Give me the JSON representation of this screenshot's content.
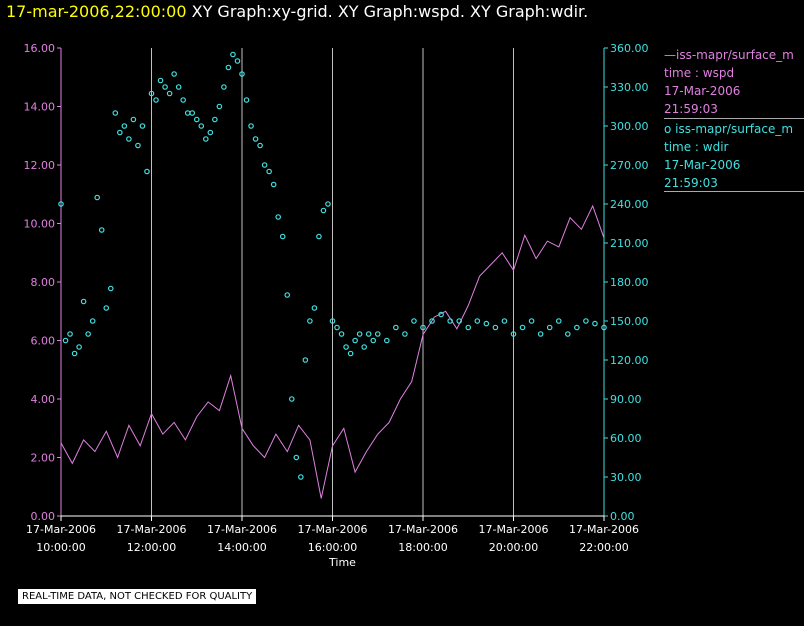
{
  "title": {
    "timestamp": "17-mar-2006,22:00:00",
    "graphs": "XY Graph:xy-grid.  XY Graph:wspd.  XY Graph:wdir."
  },
  "legend": {
    "wspd": {
      "marker": "—",
      "series": "iss-mapr/surface_m",
      "axis": "time : wspd",
      "date": "17-Mar-2006",
      "time": "21:59:03"
    },
    "wdir": {
      "marker": "o",
      "series": "iss-mapr/surface_m",
      "axis": "time : wdir",
      "date": "17-Mar-2006",
      "time": "21:59:03"
    }
  },
  "warning": "REAL-TIME DATA, NOT CHECKED FOR QUALITY",
  "colors": {
    "wspd": "#e080e0",
    "wdir": "#40e0e0",
    "grid": "#c0c0c0",
    "title_time": "#ffff00"
  },
  "chart_data": {
    "type": "line",
    "xlabel": "Time",
    "x_range_hours": [
      10.0,
      22.0
    ],
    "xticks": [
      {
        "date": "17-Mar-2006",
        "time": "10:00:00"
      },
      {
        "date": "17-Mar-2006",
        "time": "12:00:00"
      },
      {
        "date": "17-Mar-2006",
        "time": "14:00:00"
      },
      {
        "date": "17-Mar-2006",
        "time": "16:00:00"
      },
      {
        "date": "17-Mar-2006",
        "time": "18:00:00"
      },
      {
        "date": "17-Mar-2006",
        "time": "20:00:00"
      },
      {
        "date": "17-Mar-2006",
        "time": "22:00:00"
      }
    ],
    "y_left": {
      "label": "wspd",
      "ylim": [
        0,
        16
      ],
      "ticks": [
        "0.00",
        "2.00",
        "4.00",
        "6.00",
        "8.00",
        "10.00",
        "12.00",
        "14.00",
        "16.00"
      ]
    },
    "y_right": {
      "label": "wdir",
      "ylim": [
        0,
        360
      ],
      "ticks": [
        "0.00",
        "30.00",
        "60.00",
        "90.00",
        "120.00",
        "150.00",
        "180.00",
        "210.00",
        "240.00",
        "270.00",
        "300.00",
        "330.00",
        "360.00"
      ]
    },
    "series": [
      {
        "name": "wspd",
        "style": "line",
        "axis": "left",
        "x": [
          10.0,
          10.25,
          10.5,
          10.75,
          11.0,
          11.25,
          11.5,
          11.75,
          12.0,
          12.25,
          12.5,
          12.75,
          13.0,
          13.25,
          13.5,
          13.75,
          14.0,
          14.25,
          14.5,
          14.75,
          15.0,
          15.25,
          15.5,
          15.75,
          16.0,
          16.25,
          16.5,
          16.75,
          17.0,
          17.25,
          17.5,
          17.75,
          18.0,
          18.25,
          18.5,
          18.75,
          19.0,
          19.25,
          19.5,
          19.75,
          20.0,
          20.25,
          20.5,
          20.75,
          21.0,
          21.25,
          21.5,
          21.75,
          22.0
        ],
        "values": [
          2.5,
          1.8,
          2.6,
          2.2,
          2.9,
          2.0,
          3.1,
          2.4,
          3.5,
          2.8,
          3.2,
          2.6,
          3.4,
          3.9,
          3.6,
          4.8,
          3.0,
          2.4,
          2.0,
          2.8,
          2.2,
          3.1,
          2.6,
          0.6,
          2.4,
          3.0,
          1.5,
          2.2,
          2.8,
          3.2,
          4.0,
          4.6,
          6.2,
          6.8,
          7.0,
          6.4,
          7.2,
          8.2,
          8.6,
          9.0,
          8.4,
          9.6,
          8.8,
          9.4,
          9.2,
          10.2,
          9.8,
          10.6,
          9.5
        ]
      },
      {
        "name": "wdir",
        "style": "scatter",
        "axis": "right",
        "x": [
          10.0,
          10.1,
          10.2,
          10.3,
          10.4,
          10.5,
          10.6,
          10.7,
          10.8,
          10.9,
          11.0,
          11.1,
          11.2,
          11.3,
          11.4,
          11.5,
          11.6,
          11.7,
          11.8,
          11.9,
          12.0,
          12.1,
          12.2,
          12.3,
          12.4,
          12.5,
          12.6,
          12.7,
          12.8,
          12.9,
          13.0,
          13.1,
          13.2,
          13.3,
          13.4,
          13.5,
          13.6,
          13.7,
          13.8,
          13.9,
          14.0,
          14.1,
          14.2,
          14.3,
          14.4,
          14.5,
          14.6,
          14.7,
          14.8,
          14.9,
          15.0,
          15.1,
          15.2,
          15.3,
          15.4,
          15.5,
          15.6,
          15.7,
          15.8,
          15.9,
          16.0,
          16.1,
          16.2,
          16.3,
          16.4,
          16.5,
          16.6,
          16.7,
          16.8,
          16.9,
          17.0,
          17.2,
          17.4,
          17.6,
          17.8,
          18.0,
          18.2,
          18.4,
          18.6,
          18.8,
          19.0,
          19.2,
          19.4,
          19.6,
          19.8,
          20.0,
          20.2,
          20.4,
          20.6,
          20.8,
          21.0,
          21.2,
          21.4,
          21.6,
          21.8,
          22.0
        ],
        "values": [
          240,
          135,
          140,
          125,
          130,
          165,
          140,
          150,
          245,
          220,
          160,
          175,
          310,
          295,
          300,
          290,
          305,
          285,
          300,
          265,
          325,
          320,
          335,
          330,
          325,
          340,
          330,
          320,
          310,
          310,
          305,
          300,
          290,
          295,
          305,
          315,
          330,
          345,
          355,
          350,
          340,
          320,
          300,
          290,
          285,
          270,
          265,
          255,
          230,
          215,
          170,
          90,
          45,
          30,
          120,
          150,
          160,
          215,
          235,
          240,
          150,
          145,
          140,
          130,
          125,
          135,
          140,
          130,
          140,
          135,
          140,
          135,
          145,
          140,
          150,
          145,
          150,
          155,
          150,
          150,
          145,
          150,
          148,
          145,
          150,
          140,
          145,
          150,
          140,
          145,
          150,
          140,
          145,
          150,
          148,
          145
        ]
      }
    ]
  }
}
